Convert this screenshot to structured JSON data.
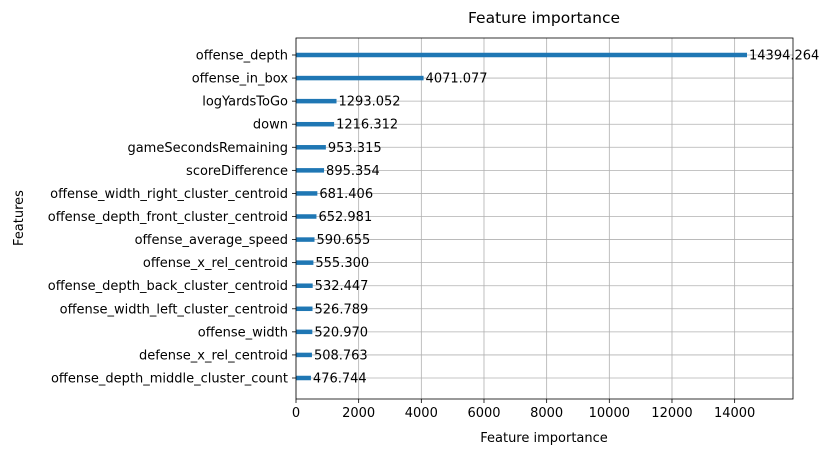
{
  "chart_data": {
    "type": "bar",
    "orientation": "horizontal",
    "title": "Feature importance",
    "xlabel": "Feature importance",
    "ylabel": "Features",
    "xlim": [
      0,
      15800
    ],
    "xticks": [
      0,
      2000,
      4000,
      6000,
      8000,
      10000,
      12000,
      14000
    ],
    "grid": true,
    "bar_color": "#1f77b4",
    "categories": [
      "offense_depth",
      "offense_in_box",
      "logYardsToGo",
      "down",
      "gameSecondsRemaining",
      "scoreDifference",
      "offense_width_right_cluster_centroid",
      "offense_depth_front_cluster_centroid",
      "offense_average_speed",
      "offense_x_rel_centroid",
      "offense_depth_back_cluster_centroid",
      "offense_width_left_cluster_centroid",
      "offense_width",
      "defense_x_rel_centroid",
      "offense_depth_middle_cluster_count"
    ],
    "values": [
      14394.264,
      4071.077,
      1293.052,
      1216.312,
      953.315,
      895.354,
      681.406,
      652.981,
      590.655,
      555.3,
      532.447,
      526.789,
      520.97,
      508.763,
      476.744
    ],
    "value_labels": [
      "14394.264",
      "4071.077",
      "1293.052",
      "1216.312",
      "953.315",
      "895.354",
      "681.406",
      "652.981",
      "590.655",
      "555.300",
      "532.447",
      "526.789",
      "520.970",
      "508.763",
      "476.744"
    ]
  }
}
